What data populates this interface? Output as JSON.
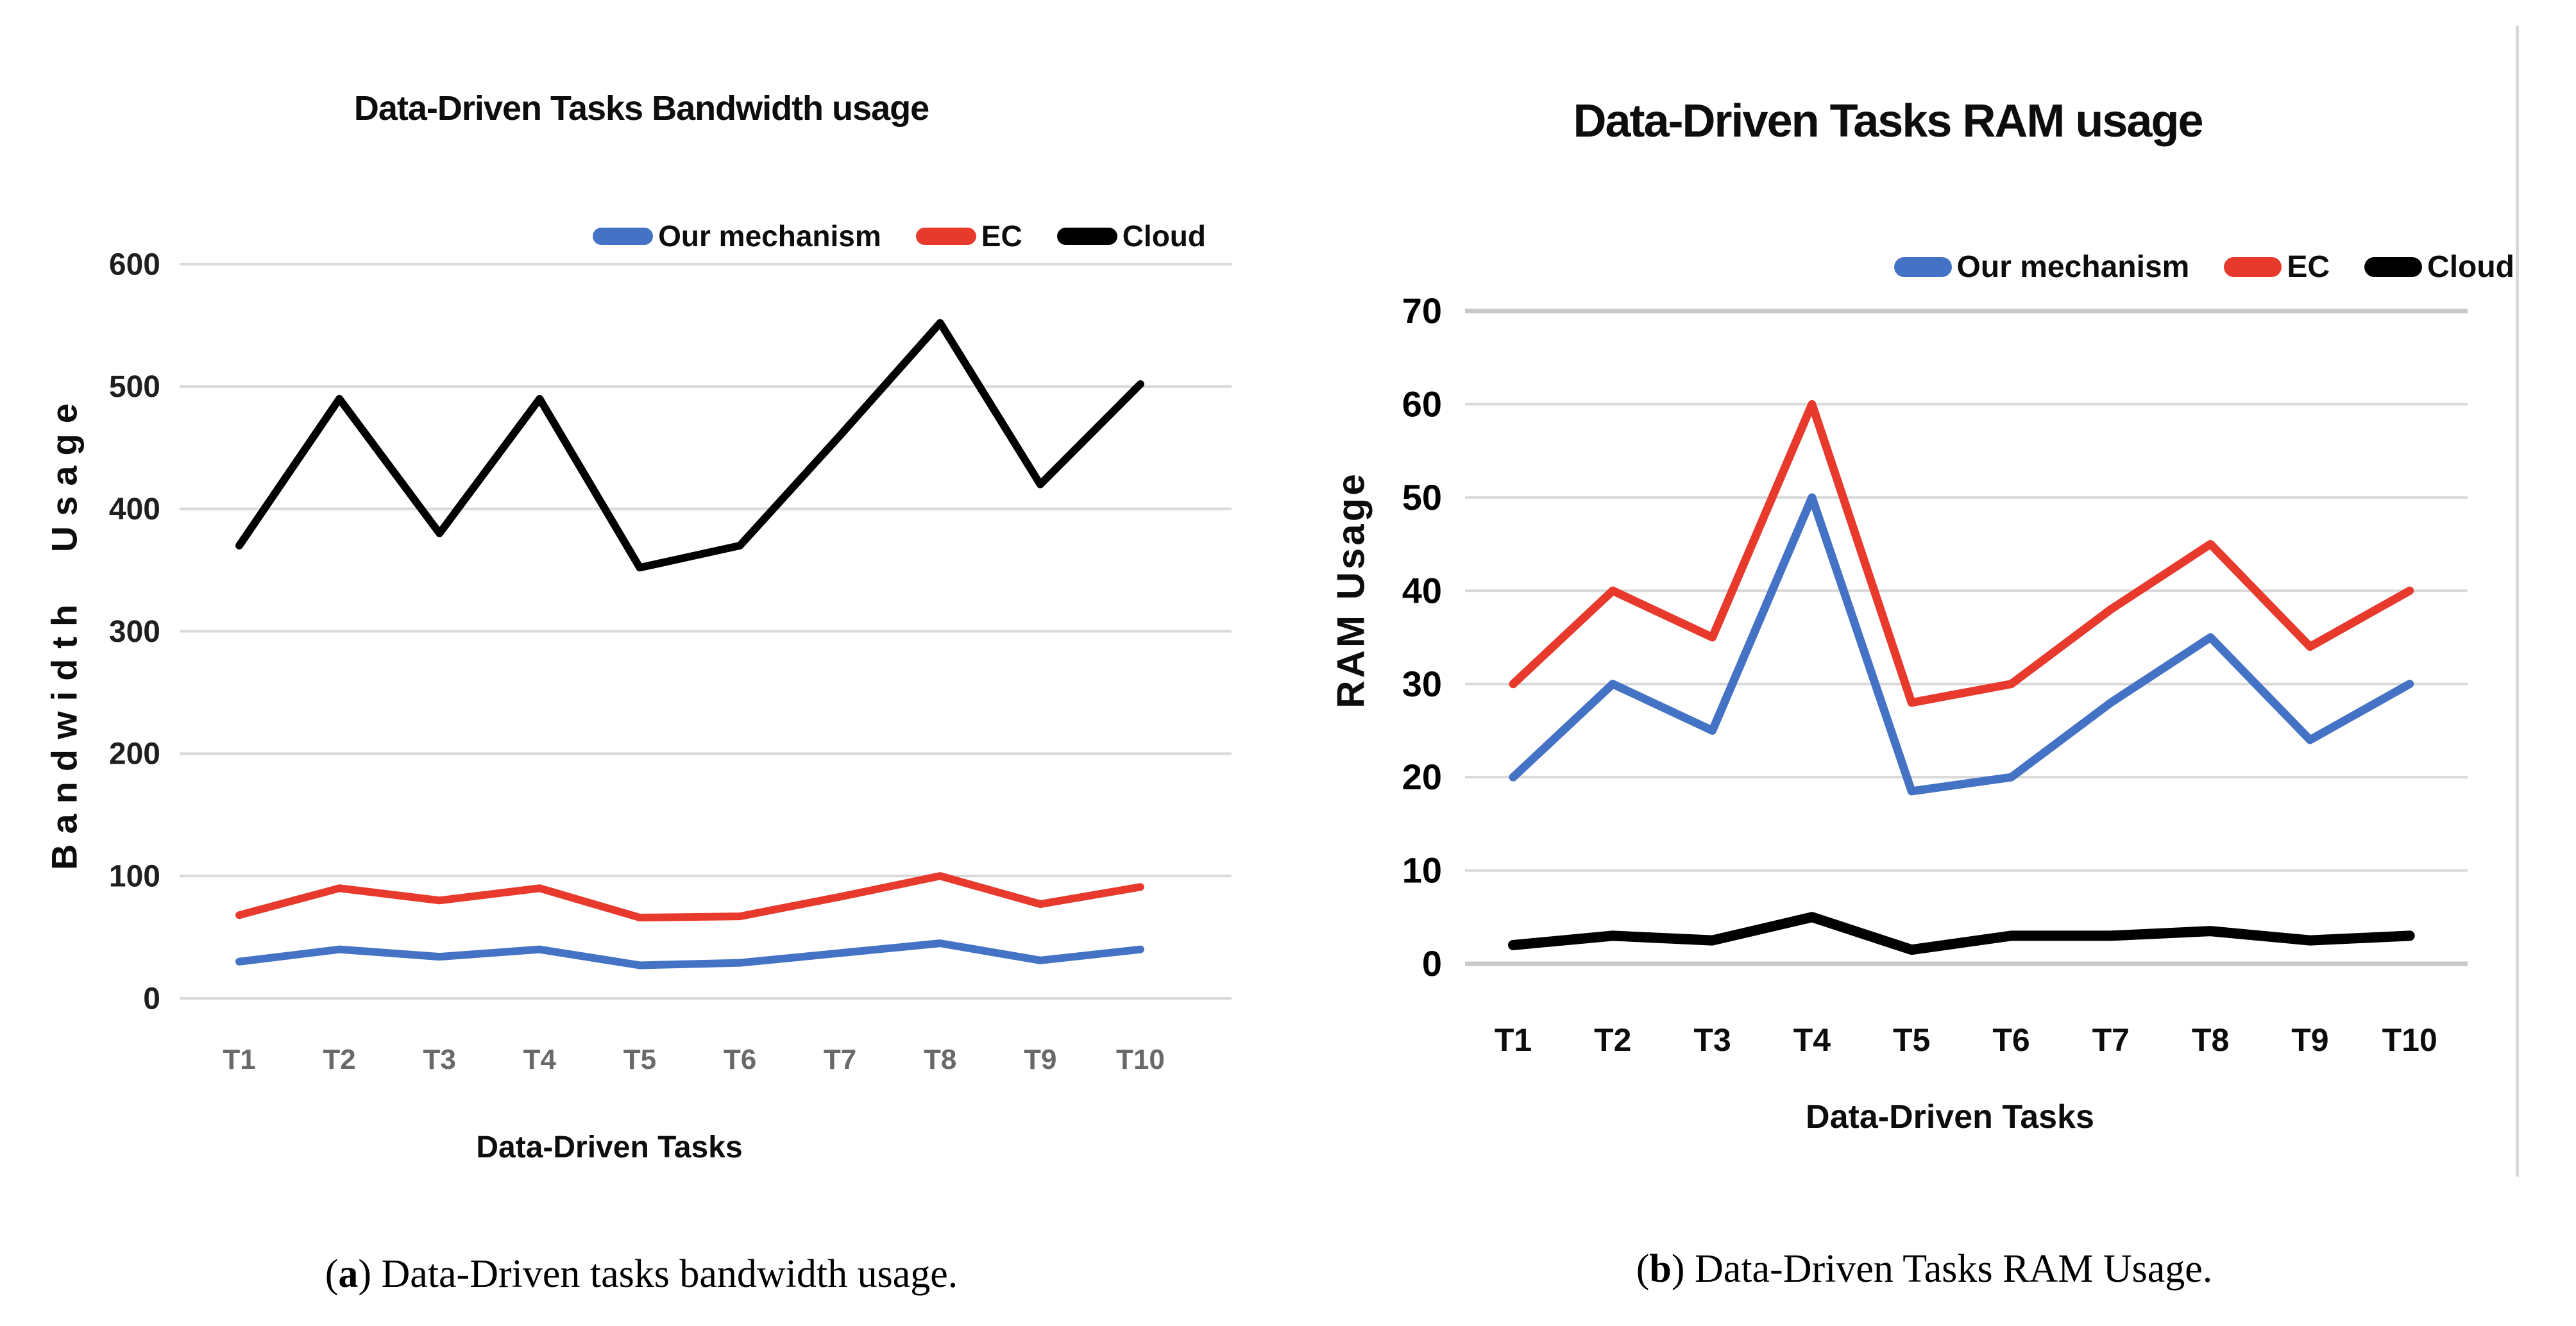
{
  "page": {
    "background": "#FFFFFF"
  },
  "chart_data": [
    {
      "type": "line",
      "title": "Data-Driven Tasks Bandwidth usage",
      "xlabel": "Data-Driven Tasks",
      "ylabel": "Bandwidth Usage",
      "caption": {
        "open": "(",
        "letter": "a",
        "rest": ") Data-Driven tasks bandwidth usage."
      },
      "categories": [
        "T1",
        "T2",
        "T3",
        "T4",
        "T5",
        "T6",
        "T7",
        "T8",
        "T9",
        "T10"
      ],
      "ylim": [
        0,
        600
      ],
      "yticks": [
        0,
        100,
        200,
        300,
        400,
        500,
        600
      ],
      "grid": true,
      "legend_position": "top-right",
      "series": [
        {
          "name": "Our mechanism",
          "color": "#4472C4",
          "values": [
            30,
            40,
            34,
            40,
            27,
            29,
            37,
            45,
            31,
            40
          ]
        },
        {
          "name": "EC",
          "color": "#E8392D",
          "values": [
            68,
            90,
            80,
            90,
            66,
            67,
            83,
            100,
            77,
            91
          ]
        },
        {
          "name": "Cloud",
          "color": "#000000",
          "values": [
            370,
            490,
            380,
            490,
            352,
            370,
            460,
            552,
            420,
            502
          ]
        }
      ]
    },
    {
      "type": "line",
      "title": "Data-Driven Tasks RAM usage",
      "xlabel": "Data-Driven Tasks",
      "ylabel": "RAM Usage",
      "caption": {
        "open": "(",
        "letter": "b",
        "rest": ") Data-Driven Tasks RAM Usage."
      },
      "categories": [
        "T1",
        "T2",
        "T3",
        "T4",
        "T5",
        "T6",
        "T7",
        "T8",
        "T9",
        "T10"
      ],
      "ylim": [
        0,
        70
      ],
      "yticks": [
        0,
        10,
        20,
        30,
        40,
        50,
        60,
        70
      ],
      "grid": true,
      "legend_position": "top-right",
      "series": [
        {
          "name": "Our mechanism",
          "color": "#4472C4",
          "values": [
            20,
            30,
            25,
            50,
            18.5,
            20,
            28,
            35,
            24,
            30
          ]
        },
        {
          "name": "EC",
          "color": "#E8392D",
          "values": [
            30,
            40,
            35,
            60,
            28,
            30,
            38,
            45,
            34,
            40
          ]
        },
        {
          "name": "Cloud",
          "color": "#000000",
          "values": [
            2,
            3,
            2.5,
            5,
            1.5,
            3,
            3,
            3.5,
            2.5,
            3
          ]
        }
      ]
    }
  ]
}
